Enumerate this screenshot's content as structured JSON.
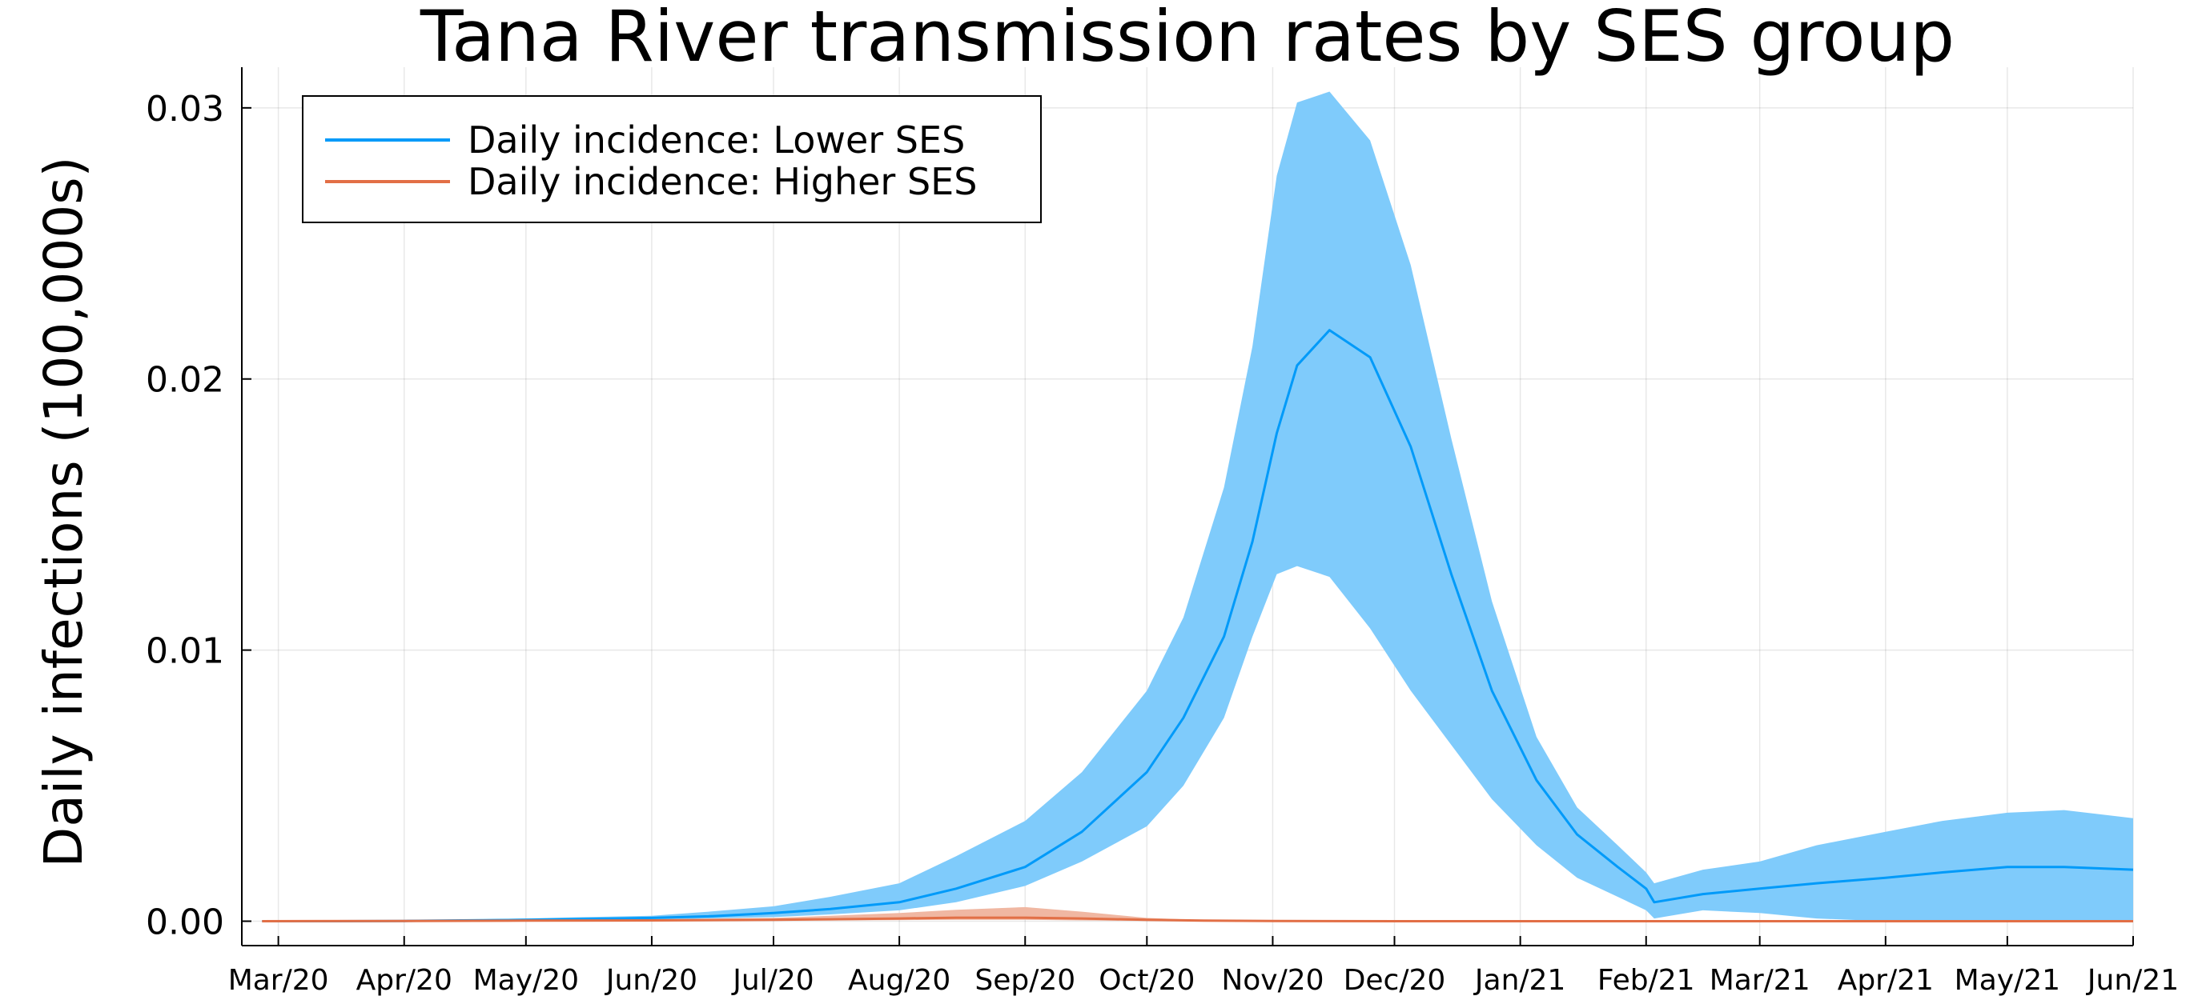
{
  "chart_data": {
    "type": "line",
    "title": "Tana River transmission rates by SES group",
    "xlabel": "",
    "ylabel": "Daily infections (100,000s)",
    "x_tick_labels": [
      "Mar/20",
      "Apr/20",
      "May/20",
      "Jun/20",
      "Jul/20",
      "Aug/20",
      "Sep/20",
      "Oct/20",
      "Nov/20",
      "Dec/20",
      "Jan/21",
      "Feb/21",
      "Mar/21",
      "Apr/21",
      "May/21",
      "Jun/21"
    ],
    "x_ticks": [
      "2020-03-01",
      "2020-04-01",
      "2020-05-01",
      "2020-06-01",
      "2020-07-01",
      "2020-08-01",
      "2020-09-01",
      "2020-10-01",
      "2020-11-01",
      "2020-12-01",
      "2021-01-01",
      "2021-02-01",
      "2021-03-01",
      "2021-04-01",
      "2021-05-01",
      "2021-06-01"
    ],
    "xlim": [
      "2020-02-21",
      "2021-06-01"
    ],
    "y_ticks": [
      0,
      0.01,
      0.02,
      0.03
    ],
    "y_tick_labels": [
      "0.00",
      "0.01",
      "0.02",
      "0.03"
    ],
    "ylim": [
      -0.0009,
      0.0315
    ],
    "grid": true,
    "legend_position": "top-left",
    "series": [
      {
        "name": "Daily incidence: Lower SES",
        "color": "#009af9",
        "band_color": "#7fcbfb",
        "x": [
          "2020-02-26",
          "2020-03-15",
          "2020-04-01",
          "2020-04-15",
          "2020-05-01",
          "2020-05-15",
          "2020-06-01",
          "2020-06-15",
          "2020-07-01",
          "2020-07-15",
          "2020-08-01",
          "2020-08-15",
          "2020-09-01",
          "2020-09-15",
          "2020-10-01",
          "2020-10-10",
          "2020-10-20",
          "2020-10-27",
          "2020-11-02",
          "2020-11-07",
          "2020-11-15",
          "2020-11-25",
          "2020-12-05",
          "2020-12-15",
          "2020-12-25",
          "2021-01-05",
          "2021-01-15",
          "2021-01-25",
          "2021-02-01",
          "2021-02-03",
          "2021-02-15",
          "2021-03-01",
          "2021-03-15",
          "2021-04-01",
          "2021-04-15",
          "2021-05-01",
          "2021-05-15",
          "2021-06-01"
        ],
        "values": [
          0,
          0,
          1e-05,
          3e-05,
          5e-05,
          8e-05,
          0.00012,
          0.00018,
          0.0003,
          0.00045,
          0.0007,
          0.0012,
          0.002,
          0.0033,
          0.0055,
          0.0075,
          0.0105,
          0.014,
          0.018,
          0.0205,
          0.0218,
          0.0208,
          0.0175,
          0.0128,
          0.0085,
          0.0052,
          0.0032,
          0.002,
          0.0012,
          0.0007,
          0.001,
          0.0012,
          0.0014,
          0.0016,
          0.0018,
          0.002,
          0.002,
          0.0019
        ],
        "lower": [
          0,
          0,
          0,
          1e-05,
          2e-05,
          4e-05,
          6e-05,
          0.0001,
          0.00015,
          0.00025,
          0.0004,
          0.0007,
          0.0013,
          0.0022,
          0.0035,
          0.005,
          0.0075,
          0.0105,
          0.0128,
          0.0131,
          0.0127,
          0.0108,
          0.0085,
          0.0065,
          0.0045,
          0.0028,
          0.0016,
          0.0009,
          0.0004,
          0.0001,
          0.0004,
          0.0003,
          0.0001,
          0,
          0,
          0,
          0,
          0
        ],
        "upper": [
          0,
          1e-05,
          3e-05,
          6e-05,
          0.0001,
          0.00015,
          0.0002,
          0.00035,
          0.00055,
          0.0009,
          0.0014,
          0.0024,
          0.0037,
          0.0055,
          0.0085,
          0.0112,
          0.016,
          0.0212,
          0.0275,
          0.0302,
          0.0306,
          0.0288,
          0.0242,
          0.0178,
          0.0118,
          0.0068,
          0.0042,
          0.0028,
          0.0018,
          0.0014,
          0.0019,
          0.0022,
          0.0028,
          0.0033,
          0.0037,
          0.004,
          0.0041,
          0.0038
        ]
      },
      {
        "name": "Daily incidence: Higher SES",
        "color": "#e26f46",
        "band_color": "#f0b7a2",
        "x": [
          "2020-02-26",
          "2020-04-01",
          "2020-05-01",
          "2020-06-01",
          "2020-07-01",
          "2020-07-15",
          "2020-08-01",
          "2020-08-15",
          "2020-09-01",
          "2020-09-15",
          "2020-10-01",
          "2020-10-15",
          "2020-11-01",
          "2020-12-01",
          "2021-01-01",
          "2021-02-01",
          "2021-03-01",
          "2021-04-01",
          "2021-05-01",
          "2021-06-01"
        ],
        "values": [
          0,
          1e-05,
          2e-05,
          3e-05,
          5e-05,
          7e-05,
          0.0001,
          0.00013,
          0.00013,
          0.0001,
          5e-05,
          2e-05,
          1e-05,
          0,
          0,
          0,
          0,
          0,
          0,
          0
        ],
        "lower": [
          0,
          0,
          0,
          1e-05,
          2e-05,
          3e-05,
          4e-05,
          5e-05,
          5e-05,
          3e-05,
          1e-05,
          0,
          0,
          0,
          0,
          0,
          0,
          0,
          0,
          0
        ],
        "upper": [
          0,
          3e-05,
          5e-05,
          7e-05,
          0.00012,
          0.0002,
          0.0003,
          0.00042,
          0.00052,
          0.00035,
          0.00012,
          4e-05,
          1e-05,
          0,
          0,
          0,
          0,
          0,
          0,
          0
        ]
      }
    ]
  }
}
